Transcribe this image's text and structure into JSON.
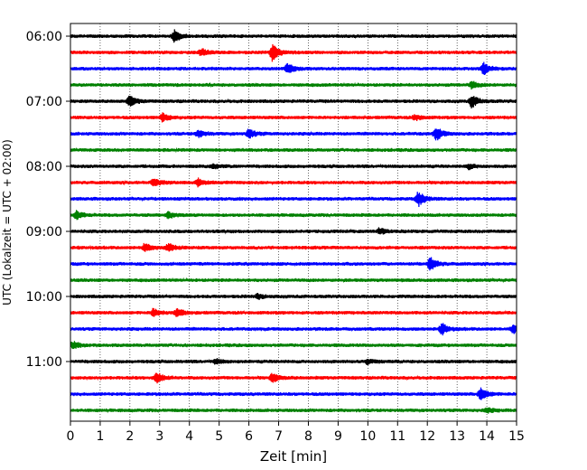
{
  "chart_data": {
    "type": "line",
    "title": "",
    "xlabel": "Zeit  [min]",
    "ylabel": "UTC (Lokalzeit = UTC + 02:00)",
    "xlim": [
      0,
      15
    ],
    "x_ticks": [
      "0",
      "1",
      "2",
      "3",
      "4",
      "5",
      "6",
      "7",
      "8",
      "9",
      "10",
      "11",
      "12",
      "13",
      "14",
      "15"
    ],
    "y_tick_labels": [
      "06:00",
      "07:00",
      "08:00",
      "09:00",
      "10:00",
      "11:00"
    ],
    "grid": "vertical dotted",
    "trace_interval_minutes": 15,
    "trace_colors_cycle": [
      "#000000",
      "#ff0000",
      "#0000ff",
      "#008000"
    ],
    "series": [
      {
        "start": "06:00",
        "color": "#000000",
        "events": [
          {
            "x": 3.5,
            "amp": 1.0
          }
        ]
      },
      {
        "start": "06:15",
        "color": "#ff0000",
        "events": [
          {
            "x": 4.4,
            "amp": 0.6
          },
          {
            "x": 6.8,
            "amp": 1.5
          }
        ]
      },
      {
        "start": "06:30",
        "color": "#0000ff",
        "events": [
          {
            "x": 7.3,
            "amp": 0.9
          },
          {
            "x": 13.9,
            "amp": 1.0
          }
        ]
      },
      {
        "start": "06:45",
        "color": "#008000",
        "events": [
          {
            "x": 13.5,
            "amp": 0.6
          }
        ]
      },
      {
        "start": "07:00",
        "color": "#000000",
        "events": [
          {
            "x": 2.0,
            "amp": 0.9
          },
          {
            "x": 13.5,
            "amp": 1.1
          }
        ]
      },
      {
        "start": "07:15",
        "color": "#ff0000",
        "events": [
          {
            "x": 3.1,
            "amp": 0.7
          },
          {
            "x": 11.6,
            "amp": 0.5
          }
        ]
      },
      {
        "start": "07:30",
        "color": "#0000ff",
        "events": [
          {
            "x": 4.3,
            "amp": 0.6
          },
          {
            "x": 6.0,
            "amp": 0.8
          },
          {
            "x": 12.3,
            "amp": 1.2
          }
        ]
      },
      {
        "start": "07:45",
        "color": "#008000",
        "events": []
      },
      {
        "start": "08:00",
        "color": "#000000",
        "events": [
          {
            "x": 4.8,
            "amp": 0.4
          },
          {
            "x": 13.4,
            "amp": 0.4
          }
        ]
      },
      {
        "start": "08:15",
        "color": "#ff0000",
        "events": [
          {
            "x": 2.8,
            "amp": 0.7
          },
          {
            "x": 4.3,
            "amp": 0.7
          }
        ]
      },
      {
        "start": "08:30",
        "color": "#0000ff",
        "events": [
          {
            "x": 11.7,
            "amp": 1.3
          }
        ]
      },
      {
        "start": "08:45",
        "color": "#008000",
        "events": [
          {
            "x": 0.2,
            "amp": 0.7
          },
          {
            "x": 3.3,
            "amp": 0.5
          }
        ]
      },
      {
        "start": "09:00",
        "color": "#000000",
        "events": [
          {
            "x": 10.4,
            "amp": 0.5
          }
        ]
      },
      {
        "start": "09:15",
        "color": "#ff0000",
        "events": [
          {
            "x": 2.5,
            "amp": 0.7
          },
          {
            "x": 3.3,
            "amp": 0.7
          }
        ]
      },
      {
        "start": "09:30",
        "color": "#0000ff",
        "events": [
          {
            "x": 12.1,
            "amp": 1.2
          }
        ]
      },
      {
        "start": "09:45",
        "color": "#008000",
        "events": []
      },
      {
        "start": "10:00",
        "color": "#000000",
        "events": [
          {
            "x": 6.3,
            "amp": 0.4
          }
        ]
      },
      {
        "start": "10:15",
        "color": "#ff0000",
        "events": [
          {
            "x": 2.8,
            "amp": 0.7
          },
          {
            "x": 3.6,
            "amp": 0.7
          }
        ]
      },
      {
        "start": "10:30",
        "color": "#0000ff",
        "events": [
          {
            "x": 12.5,
            "amp": 1.0
          },
          {
            "x": 14.9,
            "amp": 0.7
          }
        ]
      },
      {
        "start": "10:45",
        "color": "#008000",
        "events": [
          {
            "x": 0.1,
            "amp": 0.6
          }
        ]
      },
      {
        "start": "11:00",
        "color": "#000000",
        "events": [
          {
            "x": 4.9,
            "amp": 0.4
          },
          {
            "x": 10.0,
            "amp": 0.4
          }
        ]
      },
      {
        "start": "11:15",
        "color": "#ff0000",
        "events": [
          {
            "x": 2.9,
            "amp": 1.0
          },
          {
            "x": 6.8,
            "amp": 0.8
          }
        ]
      },
      {
        "start": "11:30",
        "color": "#0000ff",
        "events": [
          {
            "x": 13.8,
            "amp": 1.1
          }
        ]
      },
      {
        "start": "11:45",
        "color": "#008000",
        "events": [
          {
            "x": 14.0,
            "amp": 0.4
          }
        ]
      }
    ]
  }
}
